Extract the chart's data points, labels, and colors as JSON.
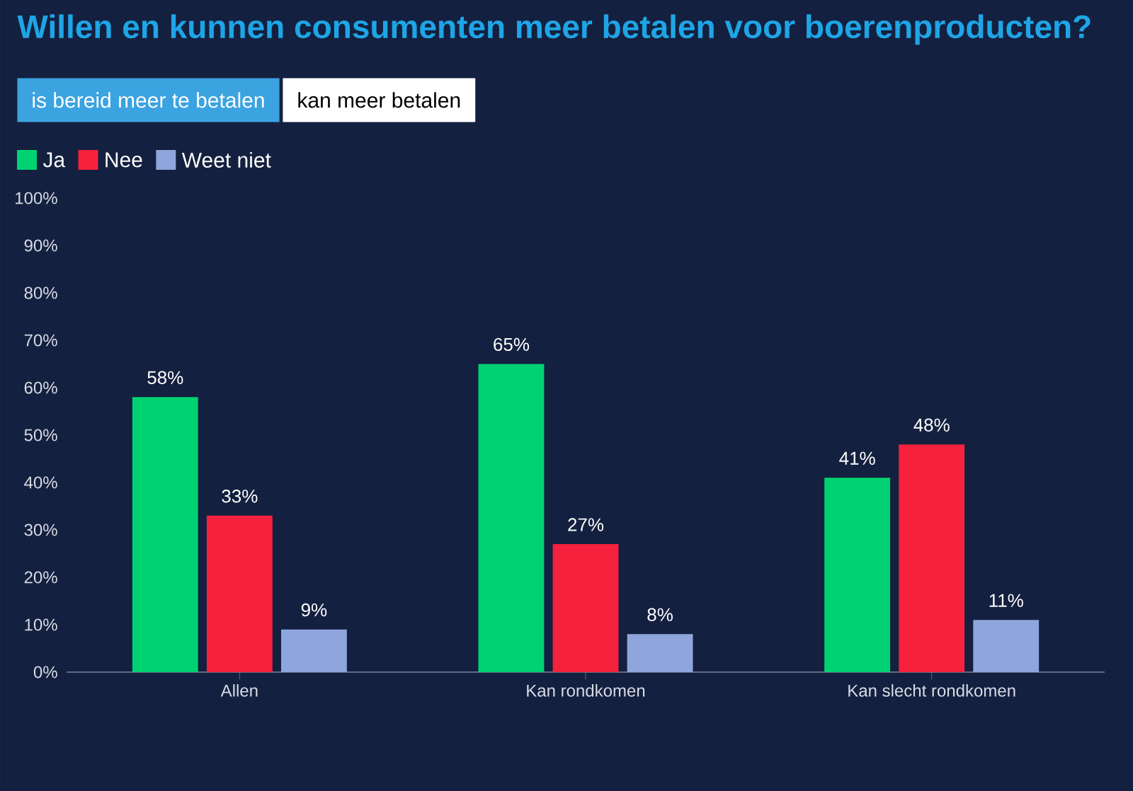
{
  "chart_data": {
    "type": "bar",
    "title": "Willen en kunnen consumenten meer betalen voor boerenproducten?",
    "annotations": [
      "is bereid meer te betalen",
      "kan meer betalen"
    ],
    "categories": [
      "Allen",
      "Kan rondkomen",
      "Kan slecht rondkomen"
    ],
    "series": [
      {
        "name": "Ja",
        "color": "#00d273",
        "values": [
          58,
          65,
          41
        ],
        "value_labels": [
          "58%",
          "65%",
          "41%"
        ]
      },
      {
        "name": "Nee",
        "color": "#f5213d",
        "values": [
          33,
          27,
          48
        ],
        "value_labels": [
          "33%",
          "27%",
          "48%"
        ]
      },
      {
        "name": "Weet niet",
        "color": "#8ea6db",
        "values": [
          9,
          8,
          11
        ],
        "value_labels": [
          "9%",
          "8%",
          "11%"
        ]
      }
    ],
    "ylim": [
      0,
      100
    ],
    "yticks": [
      {
        "value": 0,
        "label": "0%"
      },
      {
        "value": 10,
        "label": "10%"
      },
      {
        "value": 20,
        "label": "20%"
      },
      {
        "value": 30,
        "label": "30%"
      },
      {
        "value": 40,
        "label": "40%"
      },
      {
        "value": 50,
        "label": "50%"
      },
      {
        "value": 60,
        "label": "60%"
      },
      {
        "value": 70,
        "label": "70%"
      },
      {
        "value": 80,
        "label": "80%"
      },
      {
        "value": 90,
        "label": "90%"
      },
      {
        "value": 100,
        "label": "100%"
      }
    ],
    "grid": false,
    "legend": "top left"
  }
}
